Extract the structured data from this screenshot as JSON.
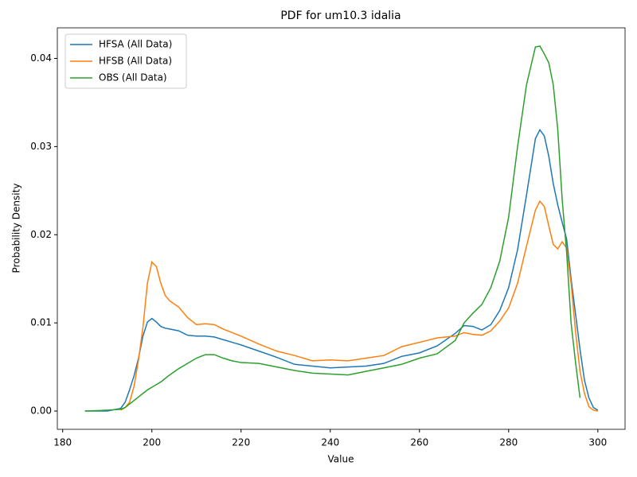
{
  "chart_data": {
    "type": "line",
    "title": "PDF for um10.3 idalia",
    "x_label": "Value",
    "y_label": "Probability Density",
    "x": [
      185,
      190,
      193,
      194,
      195,
      196,
      197,
      198,
      199,
      200,
      201,
      202,
      203,
      204,
      206,
      208,
      210,
      212,
      214,
      216,
      218,
      220,
      224,
      228,
      232,
      236,
      240,
      244,
      248,
      252,
      256,
      260,
      264,
      268,
      270,
      272,
      274,
      276,
      278,
      280,
      282,
      284,
      286,
      287,
      288,
      289,
      290,
      291,
      292,
      293,
      294,
      295,
      296,
      297,
      298,
      299,
      300
    ],
    "series": [
      {
        "name": "HFSA (All Data)",
        "color": "#1f77b4",
        "values": [
          0,
          0,
          0.0003,
          0.001,
          0.0024,
          0.004,
          0.006,
          0.0085,
          0.0101,
          0.0105,
          0.0101,
          0.0096,
          0.0094,
          0.0093,
          0.0091,
          0.0086,
          0.0085,
          0.0085,
          0.0084,
          0.0081,
          0.0078,
          0.0075,
          0.0068,
          0.0061,
          0.0053,
          0.0051,
          0.0049,
          0.005,
          0.0051,
          0.0054,
          0.0062,
          0.0066,
          0.0074,
          0.0088,
          0.0097,
          0.0096,
          0.0092,
          0.0098,
          0.0114,
          0.014,
          0.0183,
          0.0245,
          0.0309,
          0.0319,
          0.0312,
          0.0289,
          0.0258,
          0.0234,
          0.0214,
          0.0195,
          0.015,
          0.011,
          0.007,
          0.0035,
          0.0015,
          0.0004,
          0.0001
        ]
      },
      {
        "name": "HFSB (All Data)",
        "color": "#ff7f0e",
        "values": [
          null,
          null,
          0.0001,
          0.0004,
          0.001,
          0.0028,
          0.0058,
          0.0095,
          0.0145,
          0.0169,
          0.0164,
          0.0145,
          0.0131,
          0.0125,
          0.0118,
          0.0106,
          0.0098,
          0.0099,
          0.0098,
          0.0093,
          0.0089,
          0.0085,
          0.0076,
          0.0068,
          0.0063,
          0.0057,
          0.0058,
          0.0057,
          0.006,
          0.0063,
          0.0073,
          0.0078,
          0.0083,
          0.0085,
          0.0089,
          0.0087,
          0.0086,
          0.0091,
          0.0102,
          0.0117,
          0.0145,
          0.0187,
          0.0228,
          0.0238,
          0.0232,
          0.021,
          0.0189,
          0.0184,
          0.0192,
          0.0185,
          0.0145,
          0.009,
          0.0045,
          0.002,
          0.0005,
          0.0001,
          0
        ]
      },
      {
        "name": "OBS (All Data)",
        "color": "#2ca02c",
        "values": [
          0,
          0.0001,
          0.0002,
          0.0004,
          0.0008,
          0.0012,
          0.0016,
          0.002,
          0.0024,
          0.0027,
          0.003,
          0.0033,
          0.0037,
          0.0041,
          0.0048,
          0.0054,
          0.006,
          0.0064,
          0.0064,
          0.006,
          0.0057,
          0.0055,
          0.0054,
          0.005,
          0.0046,
          0.0043,
          0.0042,
          0.0041,
          0.0045,
          0.0049,
          0.0053,
          0.006,
          0.0065,
          0.008,
          0.01,
          0.0111,
          0.0121,
          0.014,
          0.017,
          0.022,
          0.03,
          0.037,
          0.0413,
          0.0414,
          0.0405,
          0.0395,
          0.037,
          0.032,
          0.024,
          0.018,
          0.01,
          0.0055,
          0.0015,
          null,
          null,
          null,
          null
        ]
      }
    ],
    "xlim": [
      178.8,
      306.1
    ],
    "xticks": [
      180,
      200,
      220,
      240,
      260,
      280,
      300
    ],
    "ylim": [
      -0.00207,
      0.04347
    ],
    "yticks": [
      {
        "value": 0,
        "label": "0.00"
      },
      {
        "value": 0.01,
        "label": "0.01"
      },
      {
        "value": 0.02,
        "label": "0.02"
      },
      {
        "value": 0.03,
        "label": "0.03"
      },
      {
        "value": 0.04,
        "label": "0.04"
      }
    ],
    "legend": "upper left",
    "grid": false
  }
}
